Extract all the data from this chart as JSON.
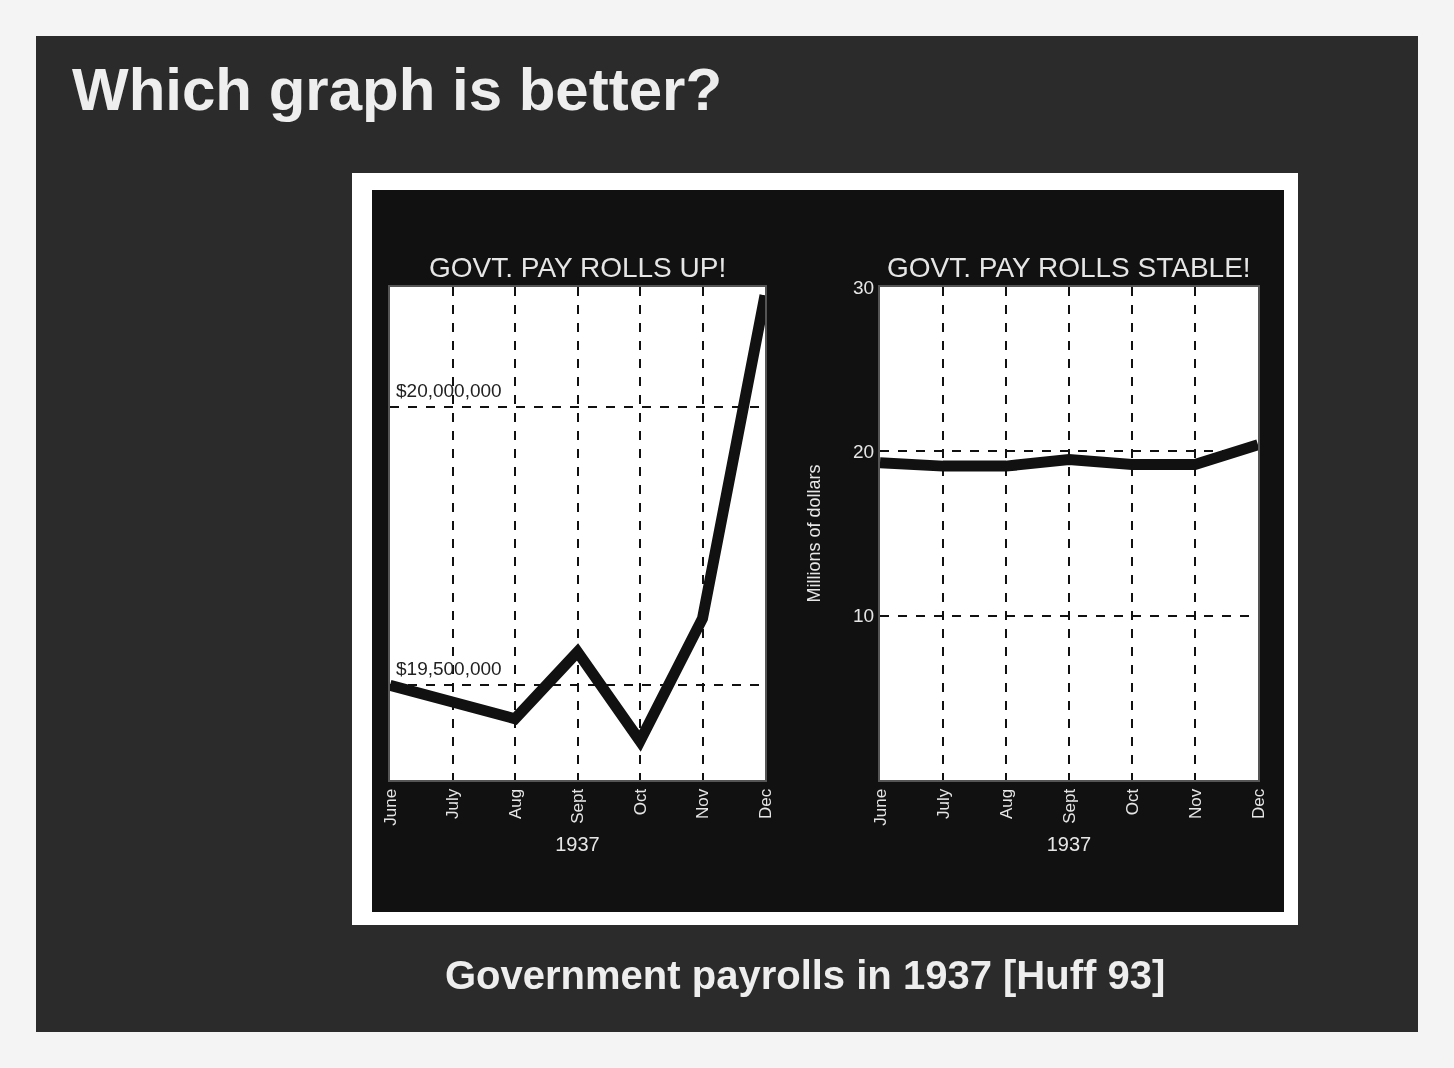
{
  "chart_data": [
    {
      "type": "line",
      "title": "GOVT. PAY ROLLS UP!",
      "xlabel": "1937",
      "categories": [
        "June",
        "July",
        "Aug",
        "Sept",
        "Oct",
        "Nov",
        "Dec"
      ],
      "series": [
        {
          "color": "#111111",
          "values": [
            19500000,
            19470000,
            19440000,
            19560000,
            19400000,
            19620000,
            20200000
          ]
        }
      ],
      "ylim": [
        19330000,
        20215000
      ],
      "yticks": [
        {
          "value": 19500000,
          "label": "$19,500,000"
        },
        {
          "value": 20000000,
          "label": "$20,000,000"
        }
      ],
      "grid": true,
      "annotations": [
        "Which graph is better?",
        "Government payrolls in 1937 [Huff 93]"
      ]
    },
    {
      "type": "line",
      "title": "GOVT. PAY ROLLS STABLE!",
      "xlabel": "1937",
      "ylabel": "Millions of dollars",
      "categories": [
        "June",
        "July",
        "Aug",
        "Sept",
        "Oct",
        "Nov",
        "Dec"
      ],
      "series": [
        {
          "color": "#111111",
          "values": [
            19.3,
            19.1,
            19.1,
            19.5,
            19.2,
            19.2,
            20.4
          ]
        }
      ],
      "ylim": [
        0,
        30
      ],
      "yticks": [
        10,
        20,
        30
      ],
      "grid": true
    }
  ]
}
